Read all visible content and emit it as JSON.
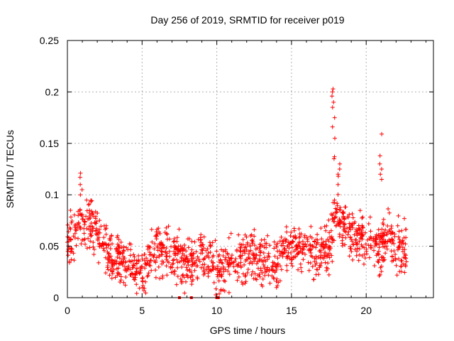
{
  "chart_data": {
    "type": "scatter",
    "title": "Day 256 of 2019, SRMTID for receiver p019",
    "xlabel": "GPS time / hours",
    "ylabel": "SRMTID / TECUs",
    "xlim": [
      0,
      24.5
    ],
    "ylim": [
      0,
      0.25
    ],
    "xticks": [
      0,
      5,
      10,
      15,
      20
    ],
    "yticks": [
      0,
      0.05,
      0.1,
      0.15,
      0.2,
      0.25
    ],
    "xtick_labels": [
      "0",
      "5",
      "10",
      "15",
      "20"
    ],
    "ytick_labels": [
      "0",
      "0.05",
      "0.1",
      "0.15",
      "0.2",
      "0.25"
    ],
    "grid": true,
    "marker": "+",
    "color": "#ff0000",
    "series": [
      {
        "name": "SRMTID",
        "trend": {
          "x": [
            0,
            0.5,
            1.0,
            1.5,
            2.0,
            2.5,
            3.0,
            4.0,
            5.0,
            5.5,
            6.0,
            7.0,
            8.0,
            9.0,
            10.0,
            11.0,
            12.0,
            13.0,
            13.5,
            14.0,
            15.0,
            16.0,
            17.0,
            17.5,
            18.0,
            18.5,
            19.0,
            20.0,
            21.0,
            21.5,
            22.0,
            22.7
          ],
          "y": [
            0.055,
            0.06,
            0.075,
            0.07,
            0.065,
            0.05,
            0.04,
            0.035,
            0.025,
            0.04,
            0.05,
            0.04,
            0.035,
            0.04,
            0.03,
            0.035,
            0.04,
            0.04,
            0.03,
            0.035,
            0.05,
            0.045,
            0.04,
            0.05,
            0.08,
            0.07,
            0.06,
            0.055,
            0.05,
            0.06,
            0.05,
            0.045
          ]
        },
        "spread": 0.035,
        "spikes": [
          {
            "x": 17.8,
            "values": [
              0.203,
              0.2,
              0.196,
              0.19,
              0.185,
              0.175,
              0.166,
              0.155,
              0.137,
              0.135
            ]
          },
          {
            "x": 18.2,
            "values": [
              0.13,
              0.125,
              0.12,
              0.118,
              0.11
            ]
          },
          {
            "x": 21.0,
            "values": [
              0.159,
              0.138,
              0.13,
              0.125,
              0.12,
              0.115
            ]
          },
          {
            "x": 0.9,
            "values": [
              0.121,
              0.117,
              0.11,
              0.105
            ]
          }
        ],
        "zero_points": [
          {
            "x": 7.5,
            "y": 0
          },
          {
            "x": 8.3,
            "y": 0
          },
          {
            "x": 10.0,
            "y": 0
          },
          {
            "x": 10.1,
            "y": 0
          }
        ]
      }
    ]
  }
}
